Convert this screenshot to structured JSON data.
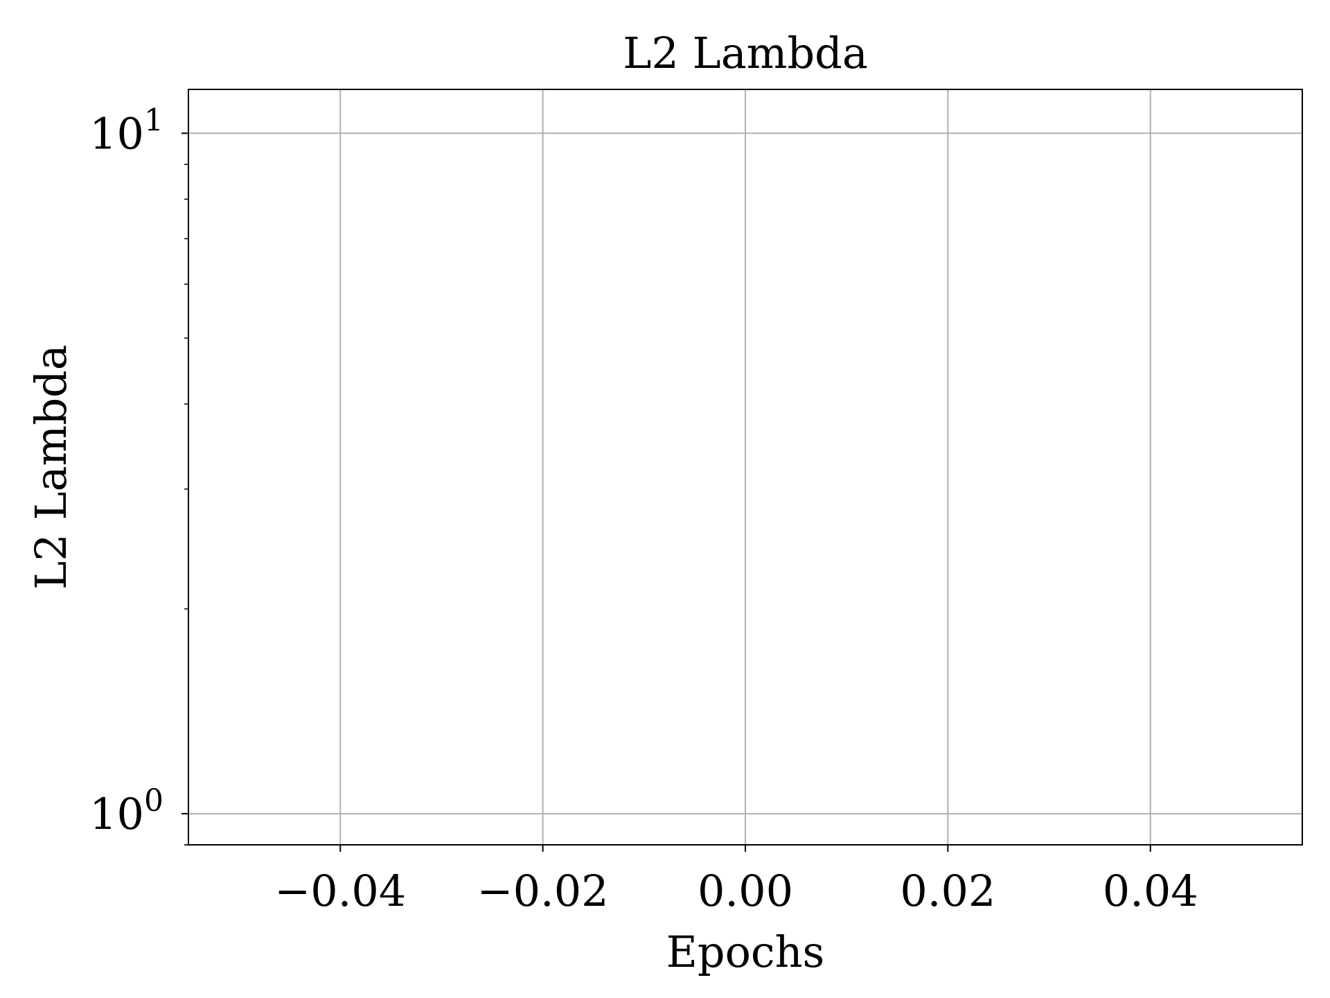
{
  "chart_data": {
    "type": "line",
    "title": "L2 Lambda",
    "xlabel": "Epochs",
    "ylabel": "L2 Lambda",
    "xscale": "linear",
    "yscale": "log",
    "xlim": [
      -0.055,
      0.055
    ],
    "ylim": [
      0.9,
      11.6
    ],
    "xticks": [
      {
        "value": -0.04,
        "label": "−0.04"
      },
      {
        "value": -0.02,
        "label": "−0.02"
      },
      {
        "value": 0.0,
        "label": "0.00"
      },
      {
        "value": 0.02,
        "label": "0.02"
      },
      {
        "value": 0.04,
        "label": "0.04"
      }
    ],
    "yticks": [
      {
        "value": 1,
        "base": "10",
        "exp": "0"
      },
      {
        "value": 10,
        "base": "10",
        "exp": "1"
      }
    ],
    "grid": true,
    "series": []
  }
}
